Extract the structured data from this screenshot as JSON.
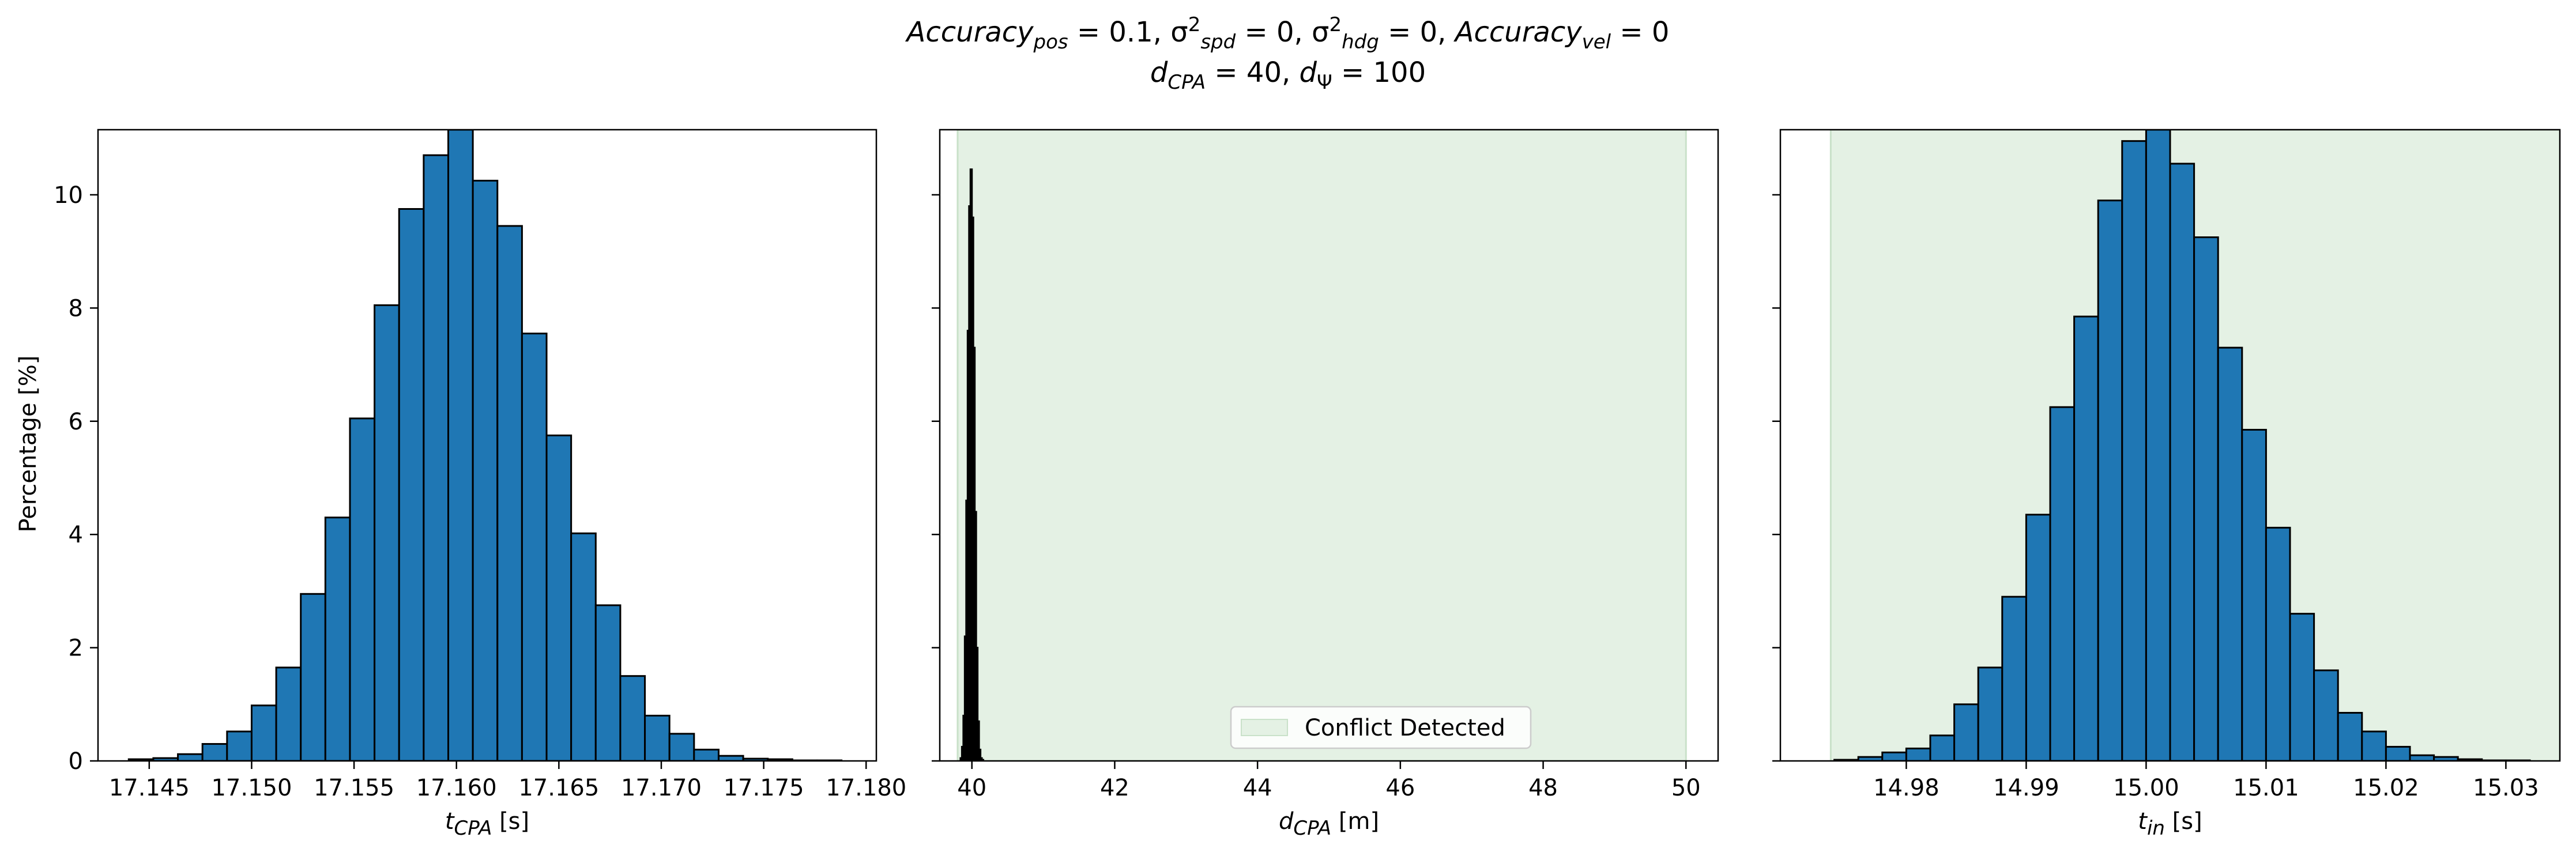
{
  "figure": {
    "title_line1": "Accuracy_pos = 0.1, σ²_spd = 0, σ²_hdg = 0, Accuracy_vel = 0",
    "title_line2": "d_CPA = 40, d_Ψ = 100"
  },
  "shared_y": {
    "label": "Percentage [%]",
    "ylim": [
      0,
      11.15
    ],
    "ticks": [
      0,
      2,
      4,
      6,
      8,
      10
    ],
    "tick_labels": [
      "0",
      "2",
      "4",
      "6",
      "8",
      "10"
    ]
  },
  "colors": {
    "bar_fill": "#1f77b4",
    "bar_edge": "#000000",
    "conflict_region": "#e4f1e4",
    "conflict_region_edge": "#c9e1c9",
    "axes_edge": "#000000"
  },
  "chart_data": [
    {
      "type": "bar",
      "name": "t_CPA histogram",
      "xlabel": "t_CPA [s]",
      "xlim": [
        17.1425,
        17.1805
      ],
      "ylim": [
        0,
        11.15
      ],
      "x_ticks": [
        17.145,
        17.15,
        17.155,
        17.16,
        17.165,
        17.17,
        17.175,
        17.18
      ],
      "x_tick_labels": [
        "17.145",
        "17.150",
        "17.155",
        "17.160",
        "17.165",
        "17.170",
        "17.175",
        "17.180"
      ],
      "bin_edges": [
        17.144,
        17.1452,
        17.1464,
        17.1476,
        17.1488,
        17.15,
        17.1512,
        17.1524,
        17.1536,
        17.1548,
        17.156,
        17.1572,
        17.1584,
        17.1596,
        17.1608,
        17.162,
        17.1632,
        17.1644,
        17.1656,
        17.1668,
        17.168,
        17.1692,
        17.1704,
        17.1716,
        17.1728,
        17.174,
        17.1752,
        17.1764,
        17.1776,
        17.1788
      ],
      "values": [
        0.03,
        0.05,
        0.12,
        0.3,
        0.52,
        0.98,
        1.65,
        2.95,
        4.3,
        6.05,
        8.05,
        9.75,
        10.7,
        11.15,
        10.25,
        9.45,
        7.55,
        5.75,
        4.02,
        2.75,
        1.5,
        0.8,
        0.48,
        0.2,
        0.09,
        0.04,
        0.03,
        0.01,
        0.01
      ]
    },
    {
      "type": "bar",
      "name": "d_CPA histogram",
      "xlabel": "d_CPA [m]",
      "xlim": [
        39.55,
        50.45
      ],
      "ylim": [
        0,
        11.15
      ],
      "x_ticks": [
        40,
        42,
        44,
        46,
        48,
        50
      ],
      "x_tick_labels": [
        "40",
        "42",
        "44",
        "46",
        "48",
        "50"
      ],
      "conflict_region": [
        39.8,
        50.0
      ],
      "legend": {
        "label": "Conflict Detected",
        "position": "lower center"
      },
      "bin_edges": [
        39.84,
        39.86,
        39.88,
        39.9,
        39.92,
        39.94,
        39.96,
        39.98,
        40.0,
        40.02,
        40.04,
        40.06,
        40.08,
        40.1,
        40.12,
        40.14,
        40.16
      ],
      "values": [
        0.05,
        0.25,
        0.8,
        2.2,
        4.6,
        7.6,
        9.8,
        10.45,
        9.6,
        7.3,
        4.4,
        2.0,
        0.7,
        0.2,
        0.05,
        0.02
      ]
    },
    {
      "type": "bar",
      "name": "t_in histogram",
      "xlabel": "t_in [s]",
      "xlim": [
        14.9695,
        15.0345
      ],
      "ylim": [
        0,
        11.15
      ],
      "x_ticks": [
        14.98,
        14.99,
        15.0,
        15.01,
        15.02,
        15.03
      ],
      "x_tick_labels": [
        "14.98",
        "14.99",
        "15.00",
        "15.01",
        "15.02",
        "15.03"
      ],
      "conflict_region": [
        14.9737,
        15.0345
      ],
      "bin_edges": [
        14.974,
        14.976,
        14.978,
        14.98,
        14.982,
        14.984,
        14.986,
        14.988,
        14.99,
        14.992,
        14.994,
        14.996,
        14.998,
        15.0,
        15.002,
        15.004,
        15.006,
        15.008,
        15.01,
        15.012,
        15.014,
        15.016,
        15.018,
        15.02,
        15.022,
        15.024,
        15.026,
        15.028,
        15.03,
        15.032
      ],
      "values": [
        0.02,
        0.07,
        0.15,
        0.22,
        0.45,
        1.0,
        1.65,
        2.9,
        4.35,
        6.25,
        7.85,
        9.9,
        10.95,
        11.15,
        10.55,
        9.25,
        7.3,
        5.85,
        4.12,
        2.6,
        1.6,
        0.85,
        0.52,
        0.25,
        0.1,
        0.07,
        0.03,
        0.01,
        0.01
      ]
    }
  ]
}
